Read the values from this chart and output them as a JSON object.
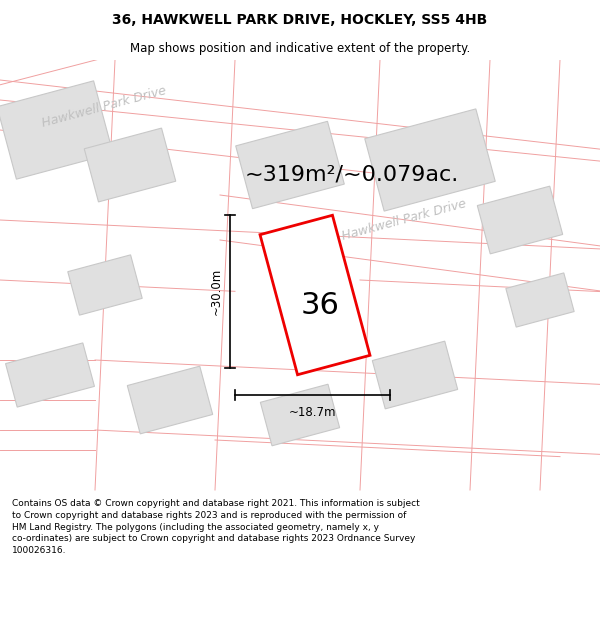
{
  "title": "36, HAWKWELL PARK DRIVE, HOCKLEY, SS5 4HB",
  "subtitle": "Map shows position and indicative extent of the property.",
  "area_text": "~319m²/~0.079ac.",
  "street_label_1": "Hawkwell Park Drive",
  "street_label_2": "Hawkwell Park Drive",
  "number_label": "36",
  "dim_width": "~18.7m",
  "dim_height": "~30.0m",
  "footer_line1": "Contains OS data © Crown copyright and database right 2021. This information is subject",
  "footer_line2": "to Crown copyright and database rights 2023 and is reproduced with the permission of",
  "footer_line3": "HM Land Registry. The polygons (including the associated geometry, namely x, y",
  "footer_line4": "co-ordinates) are subject to Crown copyright and database rights 2023 Ordnance Survey",
  "footer_line5": "100026316.",
  "map_bg": "#ffffff",
  "plot_color_fill": "#ffffff",
  "building_fill": "#e0e0e0",
  "building_edge": "#c8c8c8",
  "boundary_color": "#f0a0a0",
  "highlight_edge": "#ee0000",
  "street_label_color": "#c0c0c0",
  "dim_color": "#000000",
  "title_fontsize": 10,
  "subtitle_fontsize": 8.5,
  "area_fontsize": 16,
  "label_fontsize": 9,
  "dim_fontsize": 8.5,
  "footer_fontsize": 6.5,
  "map_rotation": 15
}
